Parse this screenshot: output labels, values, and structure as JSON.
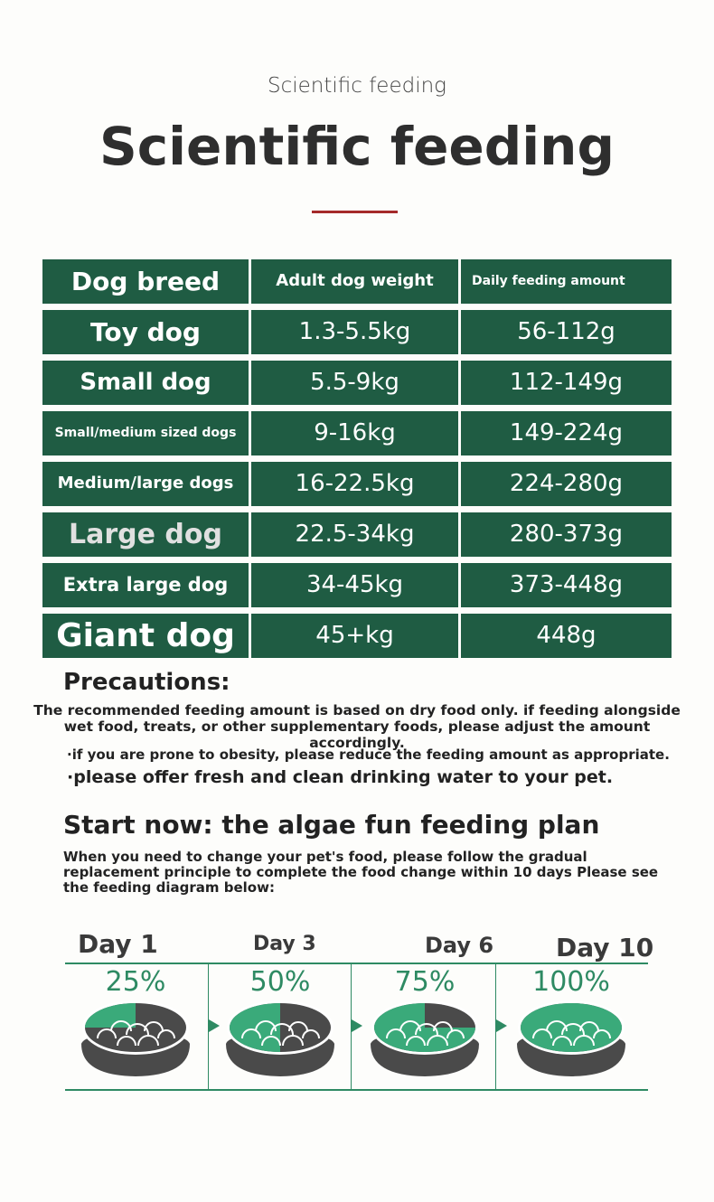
{
  "header": {
    "subtitle": "Scientific feeding",
    "title": "Scientific feeding"
  },
  "table": {
    "headers": [
      "Dog breed",
      "Adult dog weight",
      "Daily feeding amount"
    ],
    "rows": [
      [
        "Toy dog",
        "1.3-5.5kg",
        "56-112g"
      ],
      [
        "Small dog",
        "5.5-9kg",
        "112-149g"
      ],
      [
        "Small/medium sized dogs",
        "9-16kg",
        "149-224g"
      ],
      [
        "Medium/large dogs",
        "16-22.5kg",
        "224-280g"
      ],
      [
        "Large dog",
        "22.5-34kg",
        "280-373g"
      ],
      [
        "Extra large dog",
        "34-45kg",
        "373-448g"
      ],
      [
        "Giant dog",
        "45+kg",
        "448g"
      ]
    ]
  },
  "precautions": {
    "heading": "Precautions:",
    "text": "The recommended feeding amount is based on dry food only. if feeding alongside wet food, treats, or other supplementary foods, please adjust the amount accordingly.",
    "bullets": [
      "·if you are prone to obesity, please reduce the feeding amount as appropriate.",
      "·please offer fresh and clean drinking water to your pet."
    ]
  },
  "plan": {
    "heading": "Start now: the algae fun feeding plan",
    "text": "When you need to change your pet's food, please follow the gradual replacement principle to complete the food change within 10 days Please see the feeding diagram below:",
    "steps": [
      {
        "day": "Day 1",
        "percent": "25%",
        "fraction": 0.25
      },
      {
        "day": "Day 3",
        "percent": "50%",
        "fraction": 0.5
      },
      {
        "day": "Day 6",
        "percent": "75%",
        "fraction": 0.75
      },
      {
        "day": "Day 10",
        "percent": "100%",
        "fraction": 1.0
      }
    ]
  },
  "colors": {
    "table_green": "#1f5c43",
    "new_food_green": "#3aaa7a",
    "old_food_gray": "#4a4a4a",
    "accent_red": "#a52a2a"
  }
}
